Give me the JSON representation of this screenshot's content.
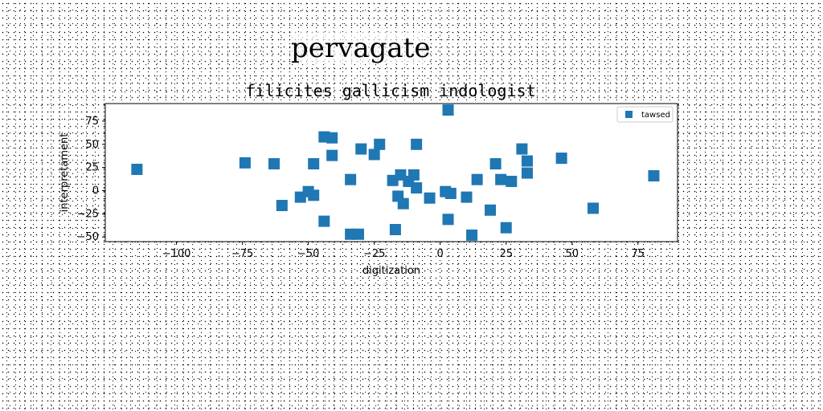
{
  "suptitle": "pervagate",
  "chart_data": {
    "type": "scatter",
    "title": "filicites gallicism indologist",
    "xlabel": "digitization",
    "ylabel": "interpretament",
    "xlim": [
      -127,
      90
    ],
    "ylim": [
      -55,
      94
    ],
    "xticks": [
      -100,
      -75,
      -50,
      -25,
      0,
      25,
      50,
      75
    ],
    "yticks": [
      -50,
      -25,
      0,
      25,
      50,
      75
    ],
    "xtick_labels": [
      "−100",
      "−75",
      "−50",
      "−25",
      "0",
      "25",
      "50",
      "75"
    ],
    "ytick_labels": [
      "−50",
      "−25",
      "0",
      "25",
      "50",
      "75"
    ],
    "legend_position": "top-right",
    "grid": false,
    "series": [
      {
        "name": "tawsed",
        "color": "#1f77b4",
        "marker": "square",
        "points": [
          [
            -115,
            23
          ],
          [
            -74,
            30
          ],
          [
            -63,
            29
          ],
          [
            -60,
            -16
          ],
          [
            -53,
            -7
          ],
          [
            -50,
            -1
          ],
          [
            -48,
            -5
          ],
          [
            -48,
            29
          ],
          [
            -44,
            58
          ],
          [
            -41,
            57
          ],
          [
            -41,
            38
          ],
          [
            -44,
            -33
          ],
          [
            -34,
            12
          ],
          [
            -34,
            -47
          ],
          [
            -31,
            -47
          ],
          [
            -30,
            45
          ],
          [
            -25,
            39
          ],
          [
            -23,
            50
          ],
          [
            -18,
            11
          ],
          [
            -17,
            -42
          ],
          [
            -16,
            -6
          ],
          [
            -15,
            17
          ],
          [
            -14,
            -14
          ],
          [
            -12,
            10
          ],
          [
            -10,
            17
          ],
          [
            -9,
            3
          ],
          [
            -9,
            50
          ],
          [
            -4,
            -8
          ],
          [
            2,
            -1
          ],
          [
            3,
            87
          ],
          [
            3,
            -31
          ],
          [
            4,
            -3
          ],
          [
            10,
            -7
          ],
          [
            12,
            -48
          ],
          [
            14,
            12
          ],
          [
            19,
            -21
          ],
          [
            21,
            29
          ],
          [
            23,
            12
          ],
          [
            25,
            -40
          ],
          [
            27,
            10
          ],
          [
            31,
            45
          ],
          [
            33,
            32
          ],
          [
            33,
            19
          ],
          [
            46,
            35
          ],
          [
            58,
            -19
          ],
          [
            81,
            16
          ]
        ]
      }
    ]
  }
}
